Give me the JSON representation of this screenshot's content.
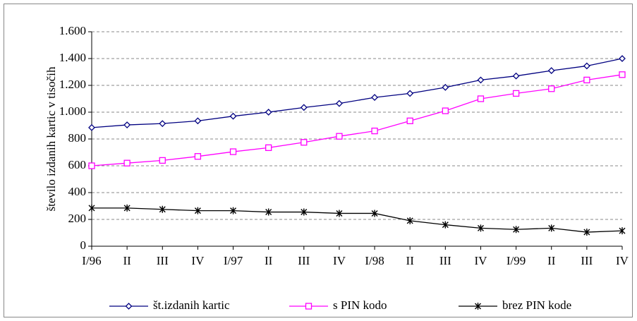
{
  "chart_data": {
    "type": "line",
    "y_label": "število izdanih kartic v tisočih",
    "categories": [
      "I/96",
      "II",
      "III",
      "IV",
      "I/97",
      "II",
      "III",
      "IV",
      "I/98",
      "II",
      "III",
      "IV",
      "I/99",
      "II",
      "III",
      "IV"
    ],
    "series": [
      {
        "name": "št.izdanih kartic",
        "color": "#000080",
        "marker": "diamond",
        "values": [
          885,
          905,
          915,
          935,
          970,
          1000,
          1035,
          1065,
          1110,
          1140,
          1185,
          1240,
          1270,
          1310,
          1345,
          1400
        ]
      },
      {
        "name": "s PIN kodo",
        "color": "#ff00ff",
        "marker": "square",
        "values": [
          600,
          620,
          640,
          670,
          705,
          735,
          775,
          820,
          860,
          935,
          1010,
          1100,
          1140,
          1175,
          1240,
          1280
        ]
      },
      {
        "name": "brez PIN kode",
        "color": "#000000",
        "marker": "star",
        "values": [
          285,
          285,
          275,
          265,
          265,
          255,
          255,
          245,
          245,
          190,
          160,
          135,
          125,
          135,
          105,
          115
        ]
      }
    ],
    "ylim": [
      0,
      1600
    ],
    "yticks": [
      0,
      200,
      400,
      600,
      800,
      {
        "value": 1000,
        "label": "1.000"
      },
      {
        "value": 1200,
        "label": "1.200"
      },
      {
        "value": 1400,
        "label": "1.400"
      },
      {
        "value": 1600,
        "label": "1.600"
      }
    ],
    "grid": true,
    "legend": "bottom"
  }
}
